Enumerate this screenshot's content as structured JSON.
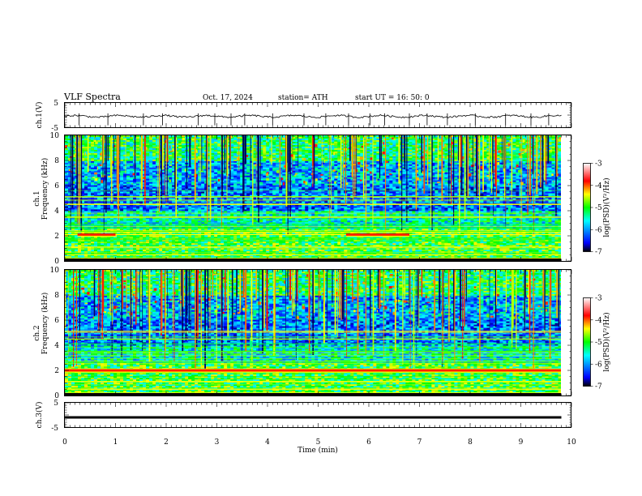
{
  "header": {
    "title": "VLF  Spectra",
    "date": "Oct. 17, 2024",
    "station": "station= ATH",
    "start_ut": "start  UT  =    16: 50: 0"
  },
  "axes": {
    "ch1_wave_label": "ch.1(V)",
    "ch1_spec_label1": "ch.1",
    "ch1_spec_label2": "Frequency  (kHz)",
    "ch2_spec_label1": "ch.2",
    "ch2_spec_label2": "Frequency  (kHz)",
    "ch3_wave_label": "ch.3(V)",
    "xlabel": "Time  (min)"
  },
  "colorbar": {
    "label": "log(PSD)(V²/Hz)",
    "ticks": [
      "-3",
      "-4",
      "-5",
      "-6",
      "-7"
    ],
    "colors": [
      "#ffffff",
      "#ff0000",
      "#ffff00",
      "#00ff00",
      "#00ffff",
      "#0000ff",
      "#000000"
    ]
  },
  "chart_data": [
    {
      "type": "line",
      "name": "ch.1 waveform",
      "ylabel": "ch.1(V)",
      "ylim": [
        -5,
        5
      ],
      "yticks": [
        "5",
        "-5"
      ],
      "xlim": [
        0,
        10
      ],
      "x_end": 9.8,
      "level": -0.5,
      "amplitude": 0.7,
      "spikes_x": [
        0.28,
        0.85,
        1.55,
        1.93,
        2.63,
        2.96,
        3.28,
        3.55,
        4.1,
        4.72,
        5.15,
        5.6,
        6.02,
        6.31,
        6.8,
        7.15,
        7.55,
        8.1,
        8.7,
        9.2,
        9.55
      ]
    },
    {
      "type": "heatmap",
      "name": "ch.1 spectrogram",
      "ylabel": "Frequency  (kHz)",
      "ylim": [
        0,
        10
      ],
      "yticks": [
        "0",
        "2",
        "4",
        "6",
        "8",
        "10"
      ],
      "xlim": [
        0,
        10
      ],
      "x_end": 9.8,
      "zlim": [
        -7,
        -3
      ],
      "strong_bands_khz": [
        0.2,
        0.5,
        1.1,
        2.1,
        2.3,
        3.5,
        4.5,
        5.1
      ],
      "bursts": [
        {
          "t_start": 0.25,
          "t_end": 1.0,
          "f_khz": 2.1
        },
        {
          "t_start": 5.55,
          "t_end": 6.8,
          "f_khz": 2.1
        },
        {
          "t_start": 3.65,
          "t_end": 3.7,
          "f_khz": 4.1
        },
        {
          "t_start": 8.75,
          "t_end": 8.8,
          "f_khz": 4.1
        }
      ]
    },
    {
      "type": "heatmap",
      "name": "ch.2 spectrogram",
      "ylabel": "Frequency  (kHz)",
      "ylim": [
        0,
        10
      ],
      "yticks": [
        "0",
        "2",
        "4",
        "6",
        "8",
        "10"
      ],
      "xlim": [
        0,
        10
      ],
      "x_end": 9.8,
      "zlim": [
        -7,
        -3
      ],
      "strong_bands_khz": [
        0.2,
        0.5,
        1.1,
        2.0,
        2.1,
        3.5,
        4.5,
        5.1
      ],
      "bursts": [
        {
          "t_start": 0.0,
          "t_end": 9.8,
          "f_khz": 2.0
        },
        {
          "t_start": 3.65,
          "t_end": 3.7,
          "f_khz": 4.1
        },
        {
          "t_start": 8.75,
          "t_end": 8.8,
          "f_khz": 4.1
        }
      ]
    },
    {
      "type": "line",
      "name": "ch.3 waveform",
      "ylabel": "ch.3(V)",
      "ylim": [
        -5,
        5
      ],
      "yticks": [
        "5",
        "-5"
      ],
      "xlim": [
        0,
        10
      ],
      "x_end": 9.8,
      "level": -1.0,
      "amplitude": 0.05,
      "xticks": [
        "0",
        "1",
        "2",
        "3",
        "4",
        "5",
        "6",
        "7",
        "8",
        "9",
        "10"
      ],
      "xlabel": "Time  (min)"
    }
  ]
}
